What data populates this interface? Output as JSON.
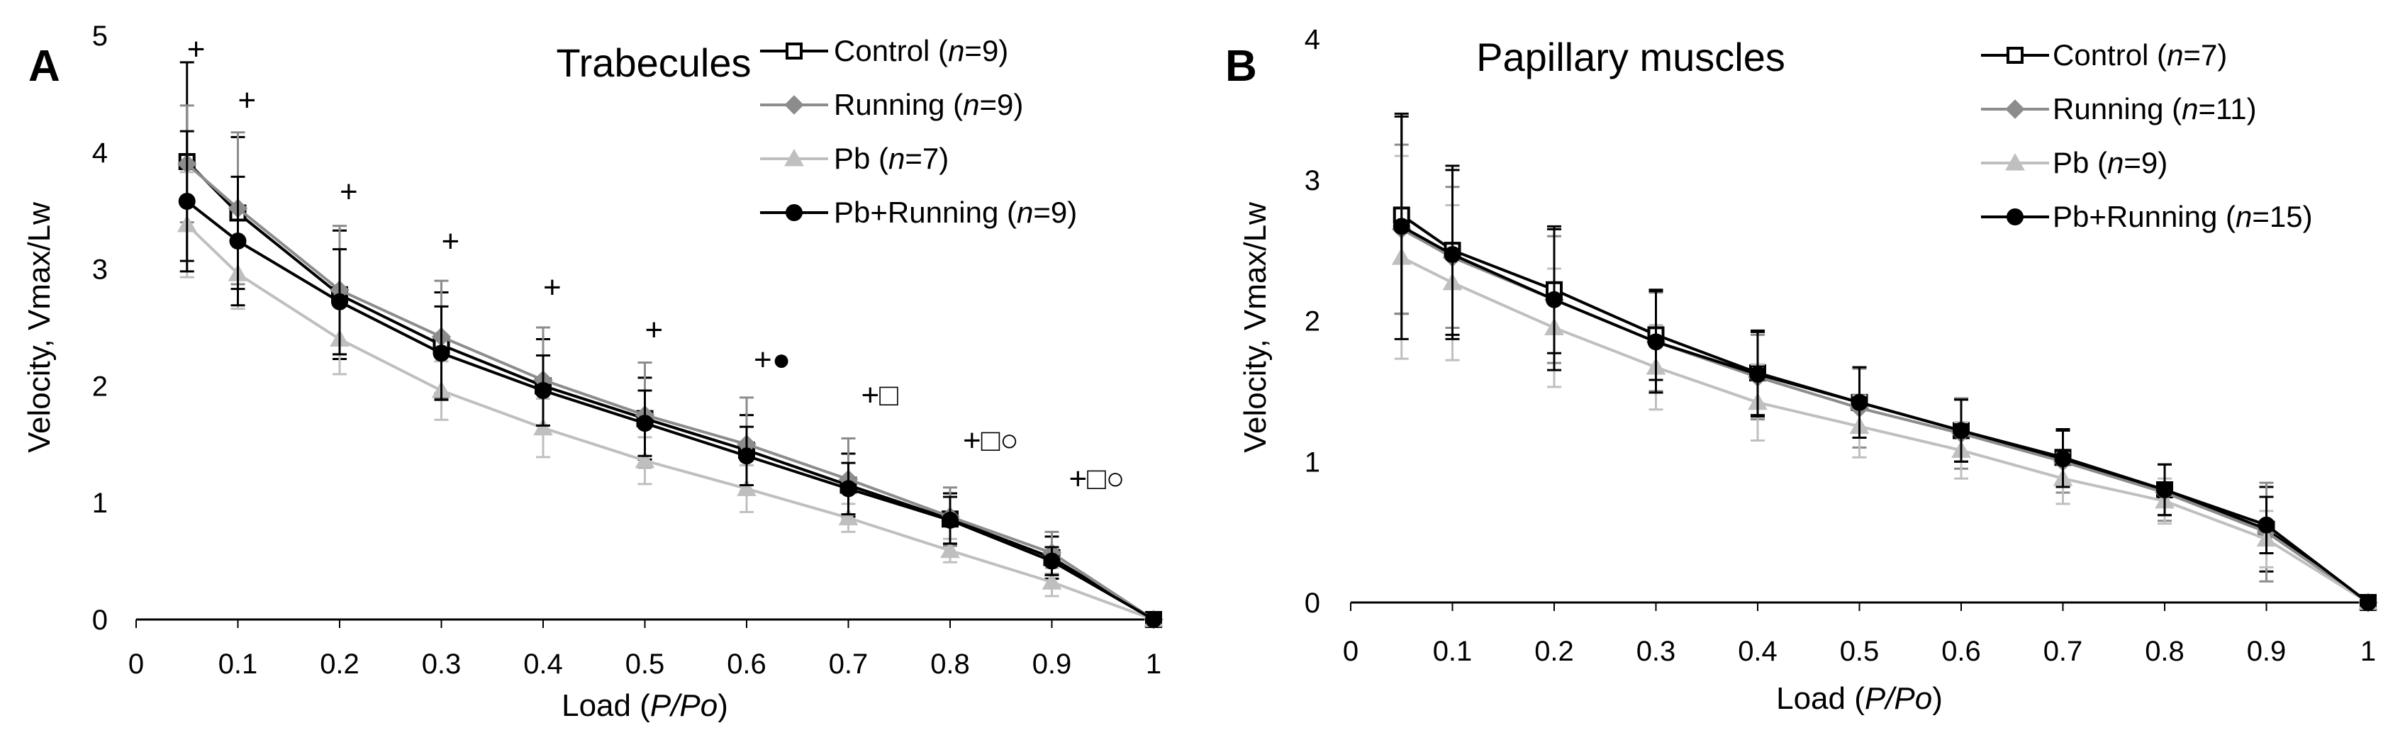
{
  "chart_data": [
    {
      "type": "line",
      "panel_label": "A",
      "title": "Trabecules",
      "xlabel_parts": [
        "Load (",
        "P/Po",
        ")"
      ],
      "ylabel": "Velocity, Vmax/Lw",
      "xlim": [
        0,
        1
      ],
      "ylim": [
        0,
        5
      ],
      "x_ticks": [
        "0",
        "0.1",
        "0.2",
        "0.3",
        "0.4",
        "0.5",
        "0.6",
        "0.7",
        "0.8",
        "0.9",
        "1"
      ],
      "x_tick_values": [
        0,
        0.1,
        0.2,
        0.3,
        0.4,
        0.5,
        0.6,
        0.7,
        0.8,
        0.9,
        1
      ],
      "y_ticks": [
        "0",
        "1",
        "2",
        "3",
        "4",
        "5"
      ],
      "y_tick_values": [
        0,
        1,
        2,
        3,
        4,
        5
      ],
      "grid": false,
      "legend_position": "top-right",
      "x": [
        0.05,
        0.1,
        0.2,
        0.3,
        0.4,
        0.5,
        0.6,
        0.7,
        0.8,
        0.9,
        1.0
      ],
      "series": [
        {
          "name": "Control",
          "n_label": "n",
          "n_value": "=9",
          "marker": "square-open",
          "color": "#000000",
          "values": [
            3.92,
            3.48,
            2.78,
            2.35,
            2.0,
            1.72,
            1.45,
            1.15,
            0.86,
            0.53,
            0.0
          ],
          "error": [
            0.85,
            0.65,
            0.55,
            0.45,
            0.4,
            0.35,
            0.3,
            0.27,
            0.22,
            0.18,
            0.03
          ]
        },
        {
          "name": "Running",
          "n_label": "n",
          "n_value": "=9",
          "marker": "diamond",
          "color": "#8c8c8c",
          "values": [
            3.9,
            3.52,
            2.82,
            2.42,
            2.05,
            1.75,
            1.5,
            1.2,
            0.88,
            0.57,
            0.0
          ],
          "error": [
            0.5,
            0.65,
            0.55,
            0.48,
            0.45,
            0.45,
            0.4,
            0.35,
            0.25,
            0.18,
            0.03
          ]
        },
        {
          "name": "Pb",
          "n_label": "n",
          "n_value": "=7",
          "marker": "triangle",
          "color": "#bfbfbf",
          "values": [
            3.38,
            2.96,
            2.4,
            1.96,
            1.64,
            1.36,
            1.12,
            0.87,
            0.59,
            0.32,
            0.0
          ],
          "error": [
            0.45,
            0.3,
            0.3,
            0.25,
            0.25,
            0.2,
            0.2,
            0.12,
            0.1,
            0.12,
            0.03
          ]
        },
        {
          "name": "Pb+Running",
          "n_label": "n",
          "n_value": "=9",
          "marker": "circle",
          "color": "#000000",
          "values": [
            3.58,
            3.24,
            2.72,
            2.28,
            1.96,
            1.68,
            1.4,
            1.12,
            0.85,
            0.5,
            0.0
          ],
          "error": [
            0.6,
            0.55,
            0.45,
            0.4,
            0.3,
            0.28,
            0.25,
            0.22,
            0.2,
            0.12,
            0.03
          ]
        }
      ],
      "significance": [
        {
          "x": 0.05,
          "text": "+"
        },
        {
          "x": 0.1,
          "text": "+"
        },
        {
          "x": 0.2,
          "text": "+"
        },
        {
          "x": 0.3,
          "text": "+"
        },
        {
          "x": 0.4,
          "text": "+"
        },
        {
          "x": 0.5,
          "text": "+"
        },
        {
          "x": 0.6,
          "text": "+●"
        },
        {
          "x": 0.7,
          "text": "+□"
        },
        {
          "x": 0.8,
          "text": "+□○"
        },
        {
          "x": 0.9,
          "text": "+□○"
        }
      ]
    },
    {
      "type": "line",
      "panel_label": "B",
      "title": "Papillary muscles",
      "xlabel_parts": [
        "Load (",
        "P/Po",
        ")"
      ],
      "ylabel": "Velocity, Vmax/Lw",
      "xlim": [
        0,
        1
      ],
      "ylim": [
        0,
        4
      ],
      "x_ticks": [
        "0",
        "0.1",
        "0.2",
        "0.3",
        "0.4",
        "0.5",
        "0.6",
        "0.7",
        "0.8",
        "0.9",
        "1"
      ],
      "x_tick_values": [
        0,
        0.1,
        0.2,
        0.3,
        0.4,
        0.5,
        0.6,
        0.7,
        0.8,
        0.9,
        1
      ],
      "y_ticks": [
        "0",
        "1",
        "2",
        "3",
        "4"
      ],
      "y_tick_values": [
        0,
        1,
        2,
        3,
        4
      ],
      "grid": false,
      "legend_position": "top-right",
      "x": [
        0.05,
        0.1,
        0.2,
        0.3,
        0.4,
        0.5,
        0.6,
        0.7,
        0.8,
        0.9,
        1.0
      ],
      "series": [
        {
          "name": "Control",
          "n_label": "n",
          "n_value": "=7",
          "marker": "square-open",
          "color": "#000000",
          "values": [
            2.75,
            2.5,
            2.22,
            1.9,
            1.63,
            1.42,
            1.22,
            1.03,
            0.8,
            0.52,
            0.0
          ],
          "error": [
            0.7,
            0.6,
            0.45,
            0.32,
            0.3,
            0.25,
            0.22,
            0.2,
            0.18,
            0.3,
            0.03
          ]
        },
        {
          "name": "Running",
          "n_label": "n",
          "n_value": "=11",
          "marker": "diamond",
          "color": "#8c8c8c",
          "values": [
            2.65,
            2.45,
            2.15,
            1.85,
            1.6,
            1.38,
            1.2,
            1.0,
            0.78,
            0.5,
            0.0
          ],
          "error": [
            0.6,
            0.5,
            0.45,
            0.35,
            0.3,
            0.28,
            0.25,
            0.22,
            0.2,
            0.35,
            0.03
          ]
        },
        {
          "name": "Pb",
          "n_label": "n",
          "n_value": "=9",
          "marker": "triangle",
          "color": "#bfbfbf",
          "values": [
            2.45,
            2.27,
            1.95,
            1.67,
            1.42,
            1.25,
            1.08,
            0.88,
            0.72,
            0.45,
            0.0
          ],
          "error": [
            0.72,
            0.55,
            0.42,
            0.3,
            0.27,
            0.22,
            0.2,
            0.18,
            0.16,
            0.2,
            0.03
          ]
        },
        {
          "name": "Pb+Running",
          "n_label": "n",
          "n_value": "=15",
          "marker": "circle",
          "color": "#000000",
          "values": [
            2.67,
            2.47,
            2.15,
            1.85,
            1.62,
            1.42,
            1.22,
            1.02,
            0.8,
            0.55,
            0.0
          ],
          "error": [
            0.8,
            0.6,
            0.5,
            0.36,
            0.3,
            0.25,
            0.22,
            0.2,
            0.18,
            0.2,
            0.03
          ]
        }
      ]
    }
  ]
}
